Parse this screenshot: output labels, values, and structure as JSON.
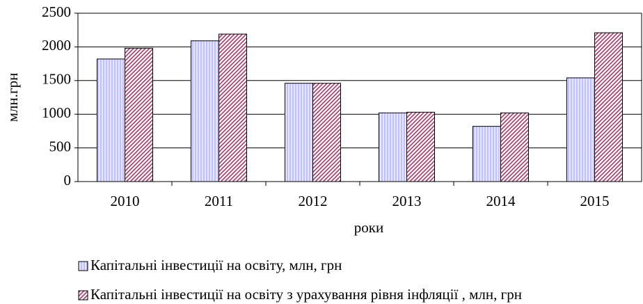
{
  "chart_data": {
    "type": "bar",
    "categories": [
      "2010",
      "2011",
      "2012",
      "2013",
      "2014",
      "2015"
    ],
    "series": [
      {
        "name": "Капітальні інвестиції  на освіту, млн, грн",
        "color": "#9999ff",
        "values": [
          1820,
          2090,
          1460,
          1020,
          820,
          1540
        ]
      },
      {
        "name": "Капітальні інвестиції  на освіту з урахування рівня інфляції  , млн, грн",
        "color": "#993366",
        "values": [
          1980,
          2190,
          1460,
          1030,
          1020,
          2210
        ]
      }
    ],
    "y_label": "млн.грн",
    "x_label": "роки",
    "ylim": [
      0,
      2500
    ],
    "yticks": [
      0,
      500,
      1000,
      1500,
      2000,
      2500
    ],
    "grid": true,
    "legend": "bottom"
  }
}
